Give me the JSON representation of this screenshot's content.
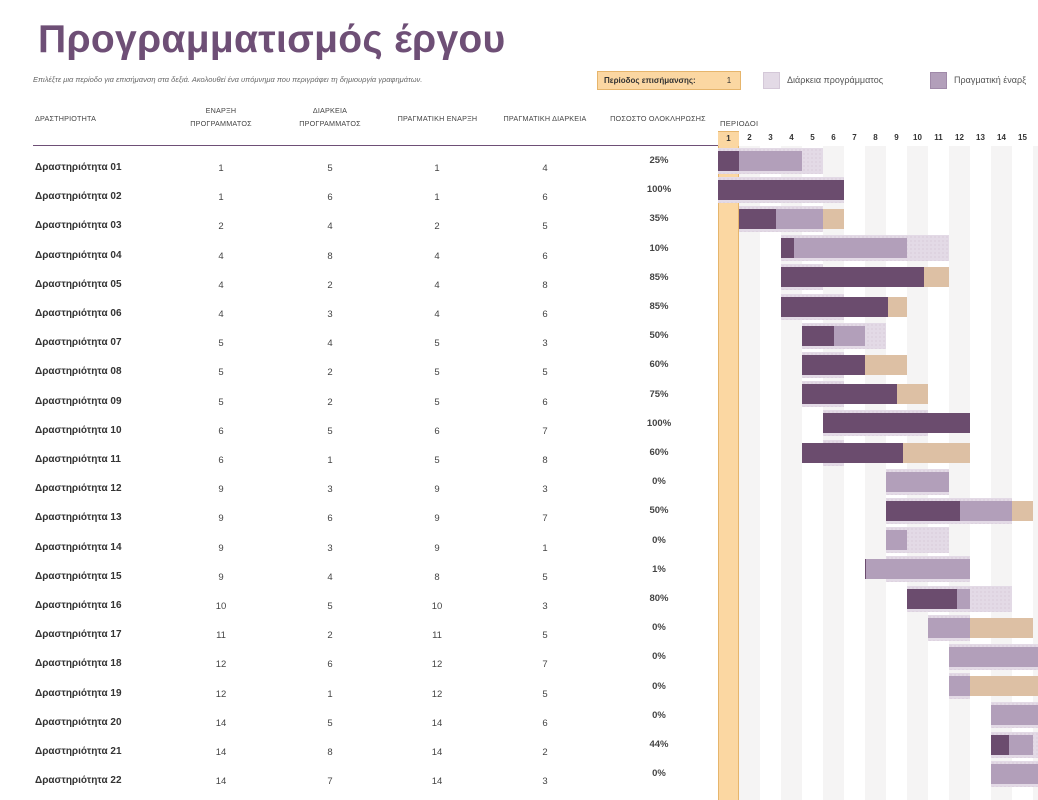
{
  "header": {
    "title": "Προγραμματισμός έργου",
    "subtitle": "Επιλέξτε μια περίοδο για επισήμανση στα δεξιά.  Ακολουθεί ένα υπόμνημα που περιγράφει τη δημιουργία γραφημάτων.",
    "highlight_label": "Περίοδος επισήμανσης:",
    "highlight_value": "1"
  },
  "legend": {
    "plan_label": "Διάρκεια προγράμματος",
    "actual_label": "Πραγματική έναρξ"
  },
  "columns": {
    "activity": "ΔΡΑΣΤΗΡΙΟΤΗΤΑ",
    "plan_start": "ΕΝΑΡΞΗ ΠΡΟΓΡΑΜΜΑΤΟΣ",
    "plan_duration": "ΔΙΑΡΚΕΙΑ ΠΡΟΓΡΑΜΜΑΤΟΣ",
    "actual_start": "ΠΡΑΓΜΑΤΙΚΗ ΕΝΑΡΞΗ",
    "actual_duration": "ΠΡΑΓΜΑΤΙΚΗ ΔΙΑΡΚΕΙΑ",
    "percent_complete": "ΠΟΣΟΣΤΟ ΟΛΟΚΛΗΡΩΣΗΣ",
    "periods": "ΠΕΡΙΟΔΟΙ"
  },
  "periods": [
    "1",
    "2",
    "3",
    "4",
    "5",
    "6",
    "7",
    "8",
    "9",
    "10",
    "11",
    "12",
    "13",
    "14",
    "15"
  ],
  "colors": {
    "accent": "#6e4f76",
    "actual": "#6b4c6e",
    "plan": "#b29fba",
    "plan_remaining": "#e3dae6",
    "beyond": "#ecaf49",
    "beyond_light": "#ddc0a4",
    "highlight": "#fbd7a2"
  },
  "rows": [
    {
      "activity": "Δραστηριότητα 01",
      "plan_start": "1",
      "plan_duration": "5",
      "actual_start": "1",
      "actual_duration": "4",
      "percent": "25%"
    },
    {
      "activity": "Δραστηριότητα 02",
      "plan_start": "1",
      "plan_duration": "6",
      "actual_start": "1",
      "actual_duration": "6",
      "percent": "100%"
    },
    {
      "activity": "Δραστηριότητα 03",
      "plan_start": "2",
      "plan_duration": "4",
      "actual_start": "2",
      "actual_duration": "5",
      "percent": "35%"
    },
    {
      "activity": "Δραστηριότητα 04",
      "plan_start": "4",
      "plan_duration": "8",
      "actual_start": "4",
      "actual_duration": "6",
      "percent": "10%"
    },
    {
      "activity": "Δραστηριότητα 05",
      "plan_start": "4",
      "plan_duration": "2",
      "actual_start": "4",
      "actual_duration": "8",
      "percent": "85%"
    },
    {
      "activity": "Δραστηριότητα 06",
      "plan_start": "4",
      "plan_duration": "3",
      "actual_start": "4",
      "actual_duration": "6",
      "percent": "85%"
    },
    {
      "activity": "Δραστηριότητα 07",
      "plan_start": "5",
      "plan_duration": "4",
      "actual_start": "5",
      "actual_duration": "3",
      "percent": "50%"
    },
    {
      "activity": "Δραστηριότητα 08",
      "plan_start": "5",
      "plan_duration": "2",
      "actual_start": "5",
      "actual_duration": "5",
      "percent": "60%"
    },
    {
      "activity": "Δραστηριότητα 09",
      "plan_start": "5",
      "plan_duration": "2",
      "actual_start": "5",
      "actual_duration": "6",
      "percent": "75%"
    },
    {
      "activity": "Δραστηριότητα 10",
      "plan_start": "6",
      "plan_duration": "5",
      "actual_start": "6",
      "actual_duration": "7",
      "percent": "100%"
    },
    {
      "activity": "Δραστηριότητα 11",
      "plan_start": "6",
      "plan_duration": "1",
      "actual_start": "5",
      "actual_duration": "8",
      "percent": "60%"
    },
    {
      "activity": "Δραστηριότητα 12",
      "plan_start": "9",
      "plan_duration": "3",
      "actual_start": "9",
      "actual_duration": "3",
      "percent": "0%"
    },
    {
      "activity": "Δραστηριότητα 13",
      "plan_start": "9",
      "plan_duration": "6",
      "actual_start": "9",
      "actual_duration": "7",
      "percent": "50%"
    },
    {
      "activity": "Δραστηριότητα 14",
      "plan_start": "9",
      "plan_duration": "3",
      "actual_start": "9",
      "actual_duration": "1",
      "percent": "0%"
    },
    {
      "activity": "Δραστηριότητα 15",
      "plan_start": "9",
      "plan_duration": "4",
      "actual_start": "8",
      "actual_duration": "5",
      "percent": "1%"
    },
    {
      "activity": "Δραστηριότητα 16",
      "plan_start": "10",
      "plan_duration": "5",
      "actual_start": "10",
      "actual_duration": "3",
      "percent": "80%"
    },
    {
      "activity": "Δραστηριότητα 17",
      "plan_start": "11",
      "plan_duration": "2",
      "actual_start": "11",
      "actual_duration": "5",
      "percent": "0%"
    },
    {
      "activity": "Δραστηριότητα 18",
      "plan_start": "12",
      "plan_duration": "6",
      "actual_start": "12",
      "actual_duration": "7",
      "percent": "0%"
    },
    {
      "activity": "Δραστηριότητα 19",
      "plan_start": "12",
      "plan_duration": "1",
      "actual_start": "12",
      "actual_duration": "5",
      "percent": "0%"
    },
    {
      "activity": "Δραστηριότητα 20",
      "plan_start": "14",
      "plan_duration": "5",
      "actual_start": "14",
      "actual_duration": "6",
      "percent": "0%"
    },
    {
      "activity": "Δραστηριότητα 21",
      "plan_start": "14",
      "plan_duration": "8",
      "actual_start": "14",
      "actual_duration": "2",
      "percent": "44%"
    },
    {
      "activity": "Δραστηριότητα 22",
      "plan_start": "14",
      "plan_duration": "7",
      "actual_start": "14",
      "actual_duration": "3",
      "percent": "0%"
    }
  ]
}
